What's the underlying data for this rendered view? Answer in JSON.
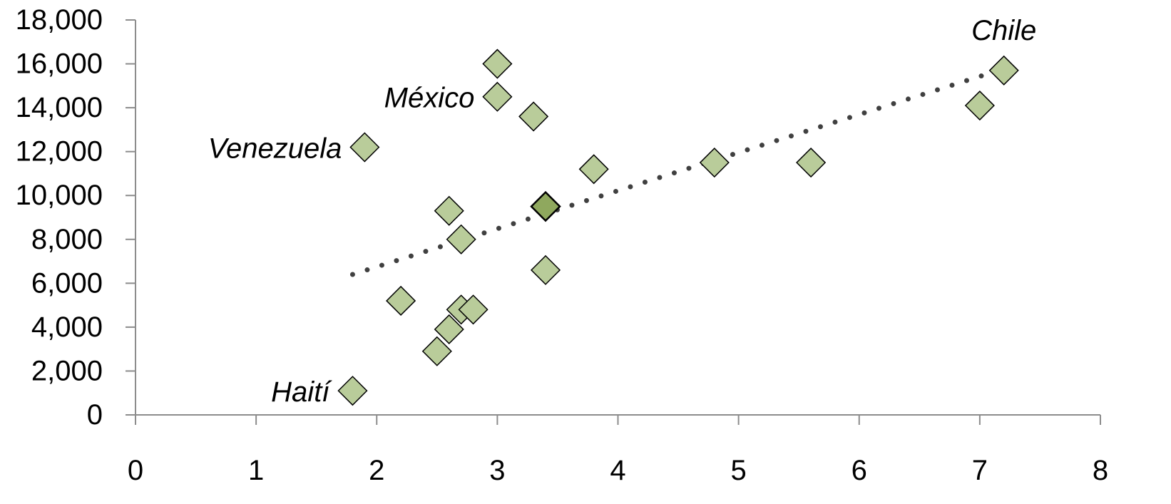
{
  "chart_data": {
    "type": "scatter",
    "title": "",
    "xlabel": "",
    "ylabel": "",
    "xlim": [
      0,
      8
    ],
    "ylim": [
      0,
      18000
    ],
    "x_ticks": [
      0,
      1,
      2,
      3,
      4,
      5,
      6,
      7,
      8
    ],
    "x_tick_labels": [
      "0",
      "1",
      "2",
      "3",
      "4",
      "5",
      "6",
      "7",
      "8"
    ],
    "y_ticks": [
      0,
      2000,
      4000,
      6000,
      8000,
      10000,
      12000,
      14000,
      16000,
      18000
    ],
    "y_tick_labels": [
      "0",
      "2,000",
      "4,000",
      "6,000",
      "8,000",
      "10,000",
      "12,000",
      "14,000",
      "16,000",
      "18,000"
    ],
    "grid": false,
    "legend": "none",
    "marker": "diamond",
    "marker_color": "#b9cc9a",
    "highlight_color": "#8fa85e",
    "trendline": {
      "style": "dotted",
      "color": "#404040",
      "x": [
        1.8,
        7.1
      ],
      "y": [
        6400,
        15600
      ]
    },
    "points": [
      {
        "x": 1.8,
        "y": 1100,
        "label": "Haití"
      },
      {
        "x": 1.9,
        "y": 12200,
        "label": "Venezuela"
      },
      {
        "x": 2.2,
        "y": 5200,
        "label": ""
      },
      {
        "x": 2.5,
        "y": 2900,
        "label": ""
      },
      {
        "x": 2.6,
        "y": 3900,
        "label": ""
      },
      {
        "x": 2.6,
        "y": 9300,
        "label": ""
      },
      {
        "x": 2.7,
        "y": 4800,
        "label": ""
      },
      {
        "x": 2.7,
        "y": 8000,
        "label": ""
      },
      {
        "x": 2.8,
        "y": 4800,
        "label": ""
      },
      {
        "x": 3.0,
        "y": 14500,
        "label": "México"
      },
      {
        "x": 3.0,
        "y": 16000,
        "label": ""
      },
      {
        "x": 3.3,
        "y": 13600,
        "label": ""
      },
      {
        "x": 3.4,
        "y": 6600,
        "label": ""
      },
      {
        "x": 3.4,
        "y": 9500,
        "label": "",
        "highlight": true
      },
      {
        "x": 3.8,
        "y": 11200,
        "label": ""
      },
      {
        "x": 4.8,
        "y": 11500,
        "label": ""
      },
      {
        "x": 5.6,
        "y": 11500,
        "label": ""
      },
      {
        "x": 7.0,
        "y": 14100,
        "label": ""
      },
      {
        "x": 7.2,
        "y": 15700,
        "label": "Chile"
      }
    ],
    "trend_dots": [
      {
        "x": 2.7,
        "y": 8000
      },
      {
        "x": 3.4,
        "y": 9200
      },
      {
        "x": 4.8,
        "y": 11500
      }
    ]
  }
}
